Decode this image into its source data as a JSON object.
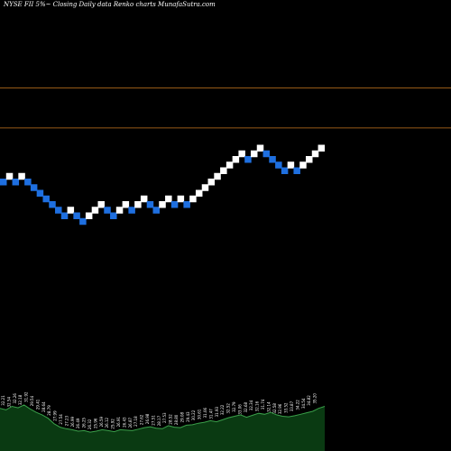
{
  "header": {
    "title": "NYSE FII 5%~ Closing Daily data Renko charts MunafaSutra.com"
  },
  "chart_data": {
    "type": "renko",
    "title": "NYSE FII 5%~ Closing Daily data Renko charts MunafaSutra.com",
    "colors": {
      "up": "#ffffff",
      "down": "#1e6fe0",
      "reference_line": "#c8781e",
      "volume_fill": "#0a3a12",
      "volume_line": "#3aa04a",
      "background": "#000000"
    },
    "reference_levels": [
      0.295,
      0.43
    ],
    "bricks": [
      {
        "dir": "down",
        "level": 10
      },
      {
        "dir": "up",
        "level": 11
      },
      {
        "dir": "down",
        "level": 10
      },
      {
        "dir": "up",
        "level": 11
      },
      {
        "dir": "down",
        "level": 10
      },
      {
        "dir": "down",
        "level": 9
      },
      {
        "dir": "down",
        "level": 8
      },
      {
        "dir": "down",
        "level": 7
      },
      {
        "dir": "down",
        "level": 6
      },
      {
        "dir": "down",
        "level": 5
      },
      {
        "dir": "down",
        "level": 4
      },
      {
        "dir": "up",
        "level": 5
      },
      {
        "dir": "down",
        "level": 4
      },
      {
        "dir": "down",
        "level": 3
      },
      {
        "dir": "up",
        "level": 4
      },
      {
        "dir": "up",
        "level": 5
      },
      {
        "dir": "up",
        "level": 6
      },
      {
        "dir": "down",
        "level": 5
      },
      {
        "dir": "down",
        "level": 4
      },
      {
        "dir": "up",
        "level": 5
      },
      {
        "dir": "up",
        "level": 6
      },
      {
        "dir": "down",
        "level": 5
      },
      {
        "dir": "up",
        "level": 6
      },
      {
        "dir": "up",
        "level": 7
      },
      {
        "dir": "down",
        "level": 6
      },
      {
        "dir": "down",
        "level": 5
      },
      {
        "dir": "up",
        "level": 6
      },
      {
        "dir": "up",
        "level": 7
      },
      {
        "dir": "down",
        "level": 6
      },
      {
        "dir": "up",
        "level": 7
      },
      {
        "dir": "down",
        "level": 6
      },
      {
        "dir": "up",
        "level": 7
      },
      {
        "dir": "up",
        "level": 8
      },
      {
        "dir": "up",
        "level": 9
      },
      {
        "dir": "up",
        "level": 10
      },
      {
        "dir": "up",
        "level": 11
      },
      {
        "dir": "up",
        "level": 12
      },
      {
        "dir": "up",
        "level": 13
      },
      {
        "dir": "up",
        "level": 14
      },
      {
        "dir": "up",
        "level": 15
      },
      {
        "dir": "down",
        "level": 14
      },
      {
        "dir": "up",
        "level": 15
      },
      {
        "dir": "up",
        "level": 16
      },
      {
        "dir": "down",
        "level": 15
      },
      {
        "dir": "down",
        "level": 14
      },
      {
        "dir": "down",
        "level": 13
      },
      {
        "dir": "down",
        "level": 12
      },
      {
        "dir": "up",
        "level": 13
      },
      {
        "dir": "down",
        "level": 12
      },
      {
        "dir": "up",
        "level": 13
      },
      {
        "dir": "up",
        "level": 14
      },
      {
        "dir": "up",
        "level": 15
      },
      {
        "dir": "up",
        "level": 16
      }
    ],
    "volume_profile": [
      0.86,
      0.83,
      0.9,
      0.87,
      0.93,
      0.85,
      0.78,
      0.73,
      0.66,
      0.55,
      0.48,
      0.45,
      0.43,
      0.4,
      0.41,
      0.38,
      0.4,
      0.43,
      0.41,
      0.39,
      0.43,
      0.42,
      0.41,
      0.44,
      0.47,
      0.49,
      0.46,
      0.45,
      0.51,
      0.48,
      0.47,
      0.52,
      0.53,
      0.56,
      0.58,
      0.61,
      0.59,
      0.63,
      0.67,
      0.7,
      0.73,
      0.68,
      0.72,
      0.76,
      0.74,
      0.78,
      0.73,
      0.7,
      0.69,
      0.71,
      0.74,
      0.77,
      0.8,
      0.86,
      0.9
    ],
    "price_labels": [
      "32.21",
      "32.54",
      "32.26",
      "32.18",
      "31.92",
      "29.54",
      "29.41",
      "28.64",
      "28.79",
      "27.99",
      "27.54",
      "27.23",
      "26.99",
      "26.49",
      "26.25",
      "26.32",
      "25.96",
      "26.59",
      "26.12",
      "25.92",
      "26.91",
      "26.43",
      "26.87",
      "27.18",
      "27.62",
      "26.98",
      "27.51",
      "28.17",
      "27.53",
      "28.52",
      "28.80",
      "29.08",
      "29.43",
      "30.22",
      "30.61",
      "31.06",
      "31.47",
      "31.93",
      "32.22",
      "32.52",
      "32.79",
      "33.06",
      "32.68",
      "32.34",
      "32.16",
      "31.74",
      "32.14",
      "32.58",
      "32.96",
      "33.52",
      "33.87",
      "34.22",
      "34.54",
      "34.82",
      "35.20"
    ]
  }
}
